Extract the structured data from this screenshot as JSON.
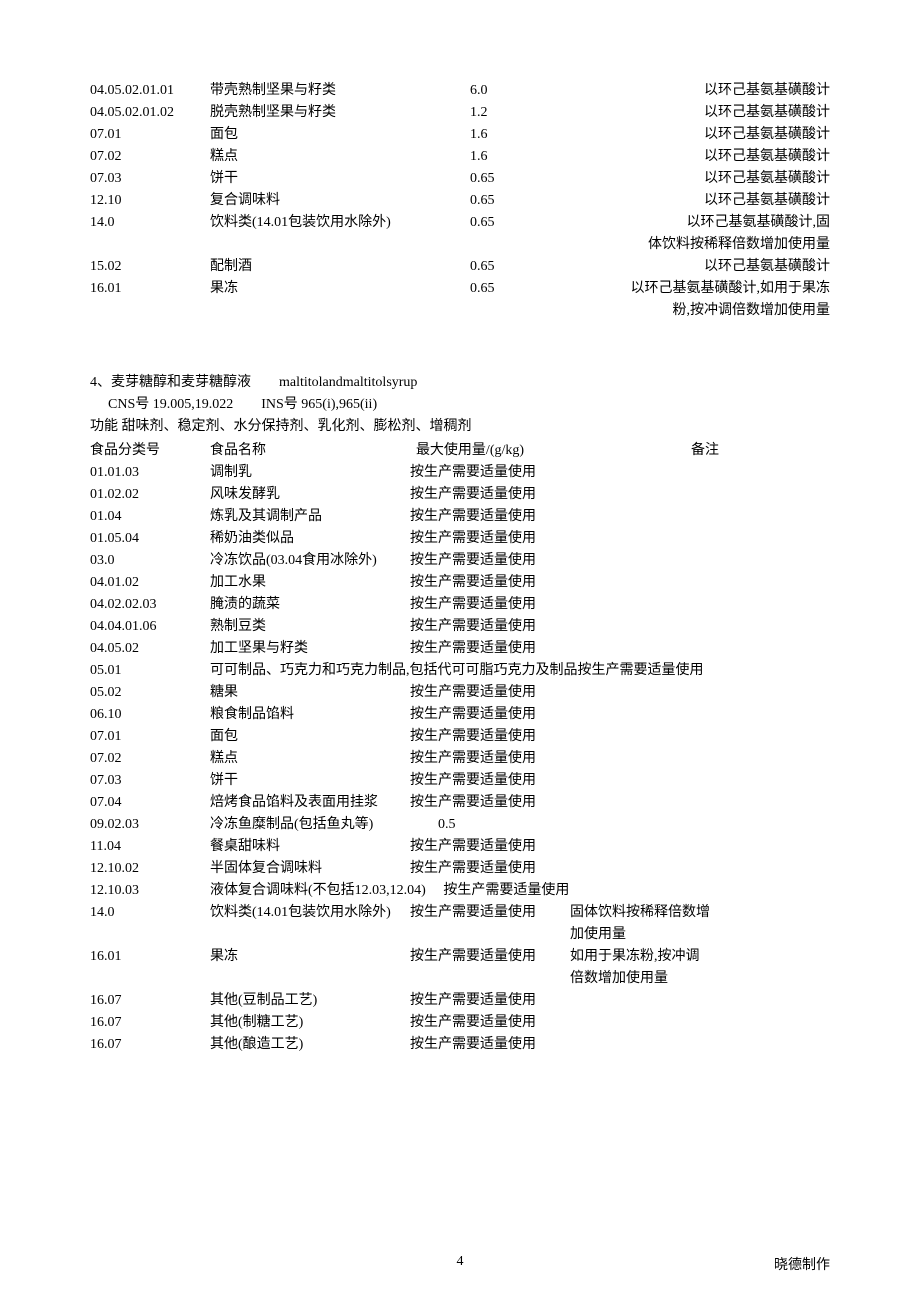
{
  "section1": {
    "rows": [
      {
        "code": "04.05.02.01.01",
        "name": "带壳熟制坚果与籽类",
        "amt": "6.0",
        "note": "以环己基氨基磺酸计"
      },
      {
        "code": "04.05.02.01.02",
        "name": "脱壳熟制坚果与籽类",
        "amt": "1.2",
        "note": "以环己基氨基磺酸计"
      },
      {
        "code": "07.01",
        "name": "面包",
        "amt": "1.6",
        "note": "以环己基氨基磺酸计"
      },
      {
        "code": "07.02",
        "name": "糕点",
        "amt": "1.6",
        "note": "以环己基氨基磺酸计"
      },
      {
        "code": "07.03",
        "name": "饼干",
        "amt": "0.65",
        "note": "以环己基氨基磺酸计"
      },
      {
        "code": "12.10",
        "name": "复合调味料",
        "amt": "0.65",
        "note": "以环己基氨基磺酸计"
      },
      {
        "code": "14.0",
        "name": "饮料类(14.01包装饮用水除外)",
        "amt": "0.65",
        "note": "以环己基氨基磺酸计,固",
        "note2": "体饮料按稀释倍数增加使用量"
      },
      {
        "code": "15.02",
        "name": "配制酒",
        "amt": "0.65",
        "note": "以环己基氨基磺酸计"
      },
      {
        "code": "16.01",
        "name": "果冻",
        "amt": "0.65",
        "note": "以环己基氨基磺酸计,如用于果冻",
        "note2": "粉,按冲调倍数增加使用量"
      }
    ]
  },
  "section2": {
    "title": "4、麦芽糖醇和麦芽糖醇液　　maltitolandmaltitolsyrup",
    "cns": "CNS号 19.005,19.022　　INS号 965(i),965(ii)",
    "fn": "功能 甜味剂、稳定剂、水分保持剂、乳化剂、膨松剂、增稠剂",
    "header": {
      "code": "食品分类号",
      "name": "食品名称",
      "amt": "最大使用量/(g/kg)",
      "note": "备注"
    },
    "rows": [
      {
        "code": "01.01.03",
        "name": "调制乳",
        "amt": "按生产需要适量使用",
        "note": ""
      },
      {
        "code": "01.02.02",
        "name": "风味发酵乳",
        "amt": "按生产需要适量使用",
        "note": ""
      },
      {
        "code": "01.04",
        "name": "炼乳及其调制产品",
        "amt": "按生产需要适量使用",
        "note": ""
      },
      {
        "code": "01.05.04",
        "name": "稀奶油类似品",
        "amt": "按生产需要适量使用",
        "note": ""
      },
      {
        "code": "03.0",
        "name": "冷冻饮品(03.04食用冰除外)",
        "amt": "按生产需要适量使用",
        "note": ""
      },
      {
        "code": "04.01.02",
        "name": "加工水果",
        "amt": "按生产需要适量使用",
        "note": ""
      },
      {
        "code": "04.02.02.03",
        "name": "腌渍的蔬菜",
        "amt": "按生产需要适量使用",
        "note": ""
      },
      {
        "code": "04.04.01.06",
        "name": "熟制豆类",
        "amt": "按生产需要适量使用",
        "note": ""
      },
      {
        "code": "04.05.02",
        "name": "加工坚果与籽类",
        "amt": "按生产需要适量使用",
        "note": ""
      },
      {
        "code": "05.01",
        "name_wide": "可可制品、巧克力和巧克力制品,包括代可可脂巧克力及制品按生产需要适量使用"
      },
      {
        "code": "05.02",
        "name": "糖果",
        "amt": "按生产需要适量使用",
        "note": ""
      },
      {
        "code": "06.10",
        "name": "粮食制品馅料",
        "amt": "按生产需要适量使用",
        "note": ""
      },
      {
        "code": "07.01",
        "name": "面包",
        "amt": "按生产需要适量使用",
        "note": ""
      },
      {
        "code": "07.02",
        "name": "糕点",
        "amt": "按生产需要适量使用",
        "note": ""
      },
      {
        "code": "07.03",
        "name": "饼干",
        "amt": "按生产需要适量使用",
        "note": ""
      },
      {
        "code": "07.04",
        "name": "焙烤食品馅料及表面用挂浆",
        "amt": "按生产需要适量使用",
        "note": ""
      },
      {
        "code": "09.02.03",
        "name": "冷冻鱼糜制品(包括鱼丸等)",
        "amt": "　　0.5",
        "note": ""
      },
      {
        "code": "11.04",
        "name": "餐桌甜味料",
        "amt": "按生产需要适量使用",
        "note": ""
      },
      {
        "code": "12.10.02",
        "name": "半固体复合调味料",
        "amt": "按生产需要适量使用",
        "note": ""
      },
      {
        "code": "12.10.03",
        "name": "液体复合调味料(不包括12.03,12.04)　 按生产需要适量使用",
        "amt": "",
        "note": ""
      },
      {
        "code": "14.0",
        "name": "饮料类(14.01包装饮用水除外)",
        "amt": "按生产需要适量使用",
        "note": "固体饮料按稀释倍数增",
        "note2": "加使用量"
      },
      {
        "code": "16.01",
        "name": "果冻",
        "amt": "按生产需要适量使用",
        "note": "如用于果冻粉,按冲调",
        "note2": "倍数增加使用量"
      },
      {
        "code": "16.07",
        "name": "其他(豆制品工艺)",
        "amt": "按生产需要适量使用",
        "note": ""
      },
      {
        "code": "16.07",
        "name": "其他(制糖工艺)",
        "amt": "按生产需要适量使用",
        "note": ""
      },
      {
        "code": "16.07",
        "name": "其他(酿造工艺)",
        "amt": "按生产需要适量使用",
        "note": ""
      }
    ]
  },
  "footer": {
    "page": "4",
    "right": "晓德制作"
  }
}
